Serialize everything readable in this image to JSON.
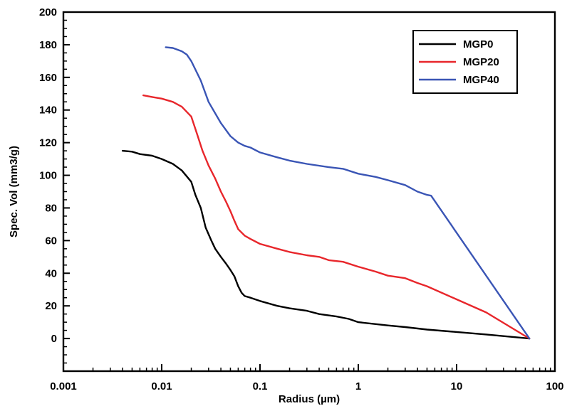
{
  "chart_data": {
    "type": "line",
    "title": "",
    "xlabel": "Radius (µm)",
    "ylabel": "Spec. Vol (mm3/g)",
    "xscale": "log",
    "xlim": [
      0.001,
      100
    ],
    "ylim": [
      -20,
      200
    ],
    "xticks": [
      0.001,
      0.01,
      0.1,
      1,
      10,
      100
    ],
    "xtick_labels": [
      "0.001",
      "0.01",
      "0.1",
      "1",
      "10",
      "100"
    ],
    "yticks": [
      0,
      20,
      40,
      60,
      80,
      100,
      120,
      140,
      160,
      180,
      200
    ],
    "ytick_labels": [
      "0",
      "20",
      "40",
      "60",
      "80",
      "100",
      "120",
      "140",
      "160",
      "180",
      "200"
    ],
    "legend_position": "top-right",
    "grid": false,
    "series": [
      {
        "name": "MGP0",
        "color": "#000000",
        "points": [
          [
            0.004,
            115
          ],
          [
            0.005,
            114.5
          ],
          [
            0.006,
            113
          ],
          [
            0.008,
            112
          ],
          [
            0.01,
            110
          ],
          [
            0.013,
            107
          ],
          [
            0.016,
            103
          ],
          [
            0.02,
            96
          ],
          [
            0.022,
            88
          ],
          [
            0.025,
            80
          ],
          [
            0.028,
            68
          ],
          [
            0.032,
            60
          ],
          [
            0.035,
            55
          ],
          [
            0.04,
            50
          ],
          [
            0.045,
            46
          ],
          [
            0.05,
            42
          ],
          [
            0.055,
            38
          ],
          [
            0.06,
            32
          ],
          [
            0.065,
            28
          ],
          [
            0.07,
            26
          ],
          [
            0.08,
            25
          ],
          [
            0.1,
            23
          ],
          [
            0.15,
            20
          ],
          [
            0.2,
            18.5
          ],
          [
            0.3,
            17
          ],
          [
            0.4,
            15
          ],
          [
            0.6,
            13.5
          ],
          [
            0.8,
            12
          ],
          [
            1,
            10
          ],
          [
            2,
            8
          ],
          [
            3,
            7
          ],
          [
            5,
            5.5
          ],
          [
            10,
            4
          ],
          [
            20,
            2.5
          ],
          [
            55,
            0
          ]
        ]
      },
      {
        "name": "MGP20",
        "color": "#e8262b",
        "points": [
          [
            0.0065,
            149
          ],
          [
            0.008,
            148
          ],
          [
            0.01,
            147
          ],
          [
            0.013,
            145
          ],
          [
            0.016,
            142
          ],
          [
            0.02,
            136
          ],
          [
            0.023,
            125
          ],
          [
            0.026,
            115
          ],
          [
            0.03,
            106
          ],
          [
            0.035,
            98
          ],
          [
            0.04,
            90
          ],
          [
            0.045,
            84
          ],
          [
            0.05,
            78
          ],
          [
            0.055,
            72
          ],
          [
            0.06,
            67
          ],
          [
            0.07,
            63
          ],
          [
            0.08,
            61
          ],
          [
            0.1,
            58
          ],
          [
            0.15,
            55
          ],
          [
            0.2,
            53
          ],
          [
            0.3,
            51
          ],
          [
            0.4,
            50
          ],
          [
            0.5,
            48
          ],
          [
            0.7,
            47
          ],
          [
            1,
            44
          ],
          [
            1.5,
            41
          ],
          [
            2,
            38.5
          ],
          [
            3,
            37
          ],
          [
            4,
            34
          ],
          [
            5,
            32
          ],
          [
            10,
            24
          ],
          [
            20,
            16
          ],
          [
            55,
            0
          ]
        ]
      },
      {
        "name": "MGP40",
        "color": "#3a55b5",
        "points": [
          [
            0.011,
            178.5
          ],
          [
            0.013,
            178
          ],
          [
            0.016,
            176
          ],
          [
            0.018,
            174
          ],
          [
            0.02,
            170
          ],
          [
            0.025,
            158
          ],
          [
            0.03,
            145
          ],
          [
            0.04,
            132
          ],
          [
            0.05,
            124
          ],
          [
            0.06,
            120
          ],
          [
            0.07,
            118
          ],
          [
            0.08,
            117
          ],
          [
            0.1,
            114
          ],
          [
            0.15,
            111
          ],
          [
            0.2,
            109
          ],
          [
            0.3,
            107
          ],
          [
            0.5,
            105
          ],
          [
            0.7,
            104
          ],
          [
            1,
            101
          ],
          [
            1.5,
            99
          ],
          [
            2,
            97
          ],
          [
            3,
            94
          ],
          [
            4,
            90
          ],
          [
            5,
            88
          ],
          [
            5.5,
            87.5
          ],
          [
            55,
            0
          ]
        ]
      }
    ]
  }
}
